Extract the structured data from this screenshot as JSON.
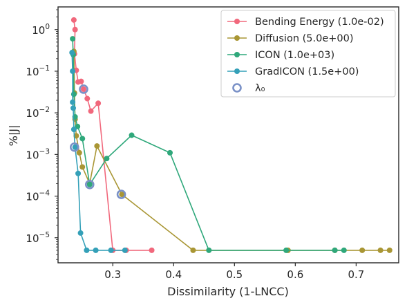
{
  "chart_data": {
    "type": "line",
    "xlabel": "Dissimilarity (1-LNCC)",
    "ylabel": "%|J|",
    "xscale": "linear",
    "yscale": "log",
    "xlim": [
      0.21,
      0.77
    ],
    "ylim": [
      2.5e-06,
      3.5
    ],
    "xticks": [
      0.3,
      0.4,
      0.5,
      0.6,
      0.7
    ],
    "xtick_labels": [
      "0.3",
      "0.4",
      "0.5",
      "0.6",
      "0.7"
    ],
    "yticks": [
      1e-05,
      0.0001,
      0.001,
      0.01,
      0.1,
      1
    ],
    "ytick_labels": [
      {
        "base": "10",
        "exp": "−5"
      },
      {
        "base": "10",
        "exp": "−4"
      },
      {
        "base": "10",
        "exp": "−3"
      },
      {
        "base": "10",
        "exp": "−2"
      },
      {
        "base": "10",
        "exp": "−1"
      },
      {
        "base": "10",
        "exp": "0"
      }
    ],
    "grid": false,
    "legend_position": "top-right",
    "series": [
      {
        "name": "Bending Energy (1.0e-02)",
        "color": "#f1687c",
        "points": [
          [
            0.236,
            1.7
          ],
          [
            0.238,
            1.0
          ],
          [
            0.237,
            0.26
          ],
          [
            0.24,
            0.105
          ],
          [
            0.243,
            0.055
          ],
          [
            0.248,
            0.057
          ],
          [
            0.252,
            0.037
          ],
          [
            0.258,
            0.022
          ],
          [
            0.264,
            0.011
          ],
          [
            0.276,
            0.017
          ],
          [
            0.3,
            5e-06
          ],
          [
            0.322,
            5e-06
          ],
          [
            0.364,
            5e-06
          ]
        ]
      },
      {
        "name": "Diffusion (5.0e+00)",
        "color": "#a99634",
        "points": [
          [
            0.236,
            0.3
          ],
          [
            0.237,
            0.03
          ],
          [
            0.238,
            0.007
          ],
          [
            0.24,
            0.0028
          ],
          [
            0.245,
            0.0011
          ],
          [
            0.25,
            0.0005
          ],
          [
            0.262,
            0.0002
          ],
          [
            0.274,
            0.0016
          ],
          [
            0.315,
            0.00011
          ],
          [
            0.432,
            5e-06
          ],
          [
            0.588,
            5e-06
          ],
          [
            0.665,
            5e-06
          ],
          [
            0.71,
            5e-06
          ],
          [
            0.74,
            5e-06
          ],
          [
            0.755,
            5e-06
          ]
        ]
      },
      {
        "name": "ICON (1.0e+03)",
        "color": "#2fa87b",
        "points": [
          [
            0.234,
            0.6
          ],
          [
            0.235,
            0.25
          ],
          [
            0.236,
            0.028
          ],
          [
            0.238,
            0.008
          ],
          [
            0.242,
            0.0047
          ],
          [
            0.25,
            0.0024
          ],
          [
            0.262,
            0.00019
          ],
          [
            0.29,
            0.0008
          ],
          [
            0.331,
            0.0029
          ],
          [
            0.394,
            0.0011
          ],
          [
            0.458,
            5e-06
          ],
          [
            0.585,
            5e-06
          ],
          [
            0.665,
            5e-06
          ],
          [
            0.68,
            5e-06
          ]
        ]
      },
      {
        "name": "GradICON (1.5e+00)",
        "color": "#34a0b8",
        "points": [
          [
            0.233,
            0.28
          ],
          [
            0.234,
            0.1
          ],
          [
            0.234,
            0.018
          ],
          [
            0.235,
            0.013
          ],
          [
            0.236,
            0.004
          ],
          [
            0.238,
            0.0015
          ],
          [
            0.243,
            0.00035
          ],
          [
            0.247,
            1.3e-05
          ],
          [
            0.257,
            5e-06
          ],
          [
            0.272,
            5e-06
          ],
          [
            0.297,
            5e-06
          ],
          [
            0.32,
            5e-06
          ]
        ]
      }
    ],
    "lambda0": {
      "name": "λ₀",
      "color": "#7a91c7",
      "points": [
        [
          0.252,
          0.037
        ],
        [
          0.237,
          0.0015
        ],
        [
          0.262,
          0.00019
        ],
        [
          0.314,
          0.00011
        ]
      ]
    }
  }
}
